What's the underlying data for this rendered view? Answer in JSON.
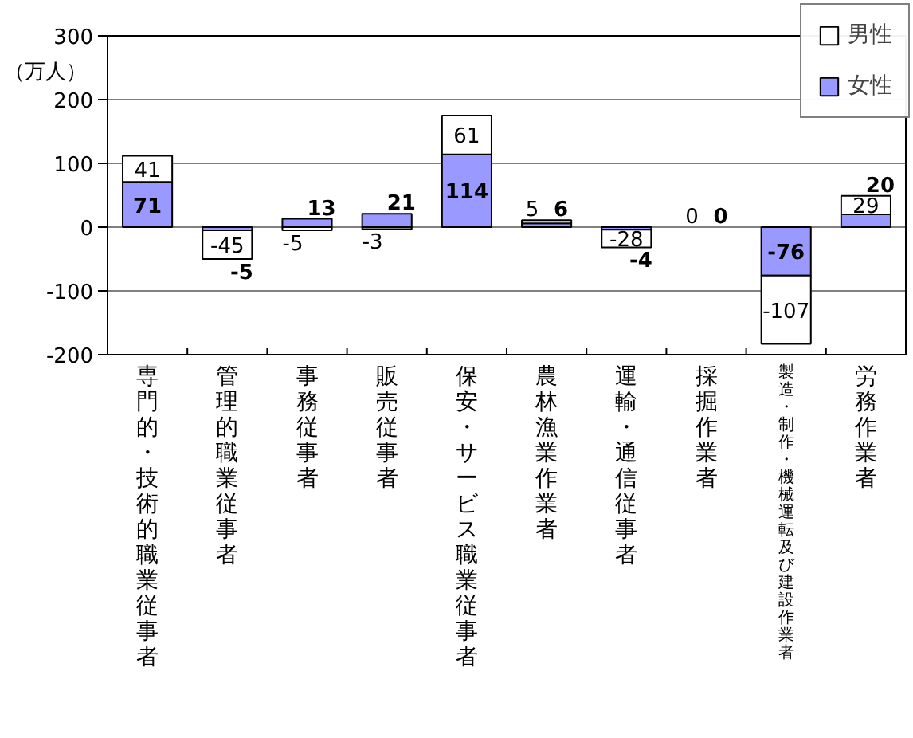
{
  "chart_data": {
    "type": "bar",
    "stacked": true,
    "ylabel": "（万人）",
    "categories": [
      "専門的・技術的職業従事者",
      "管理的職業従事者",
      "事務従事者",
      "販売従事者",
      "保安・サービス職業従事者",
      "農林漁業作業者",
      "運輸・通信従事者",
      "採掘作業者",
      "製造・制作・機械運転及び建設作業者",
      "労務作業者"
    ],
    "series": [
      {
        "name": "女性",
        "color": "#9999ff",
        "values": [
          71,
          -5,
          13,
          21,
          114,
          6,
          -4,
          0,
          -76,
          20
        ]
      },
      {
        "name": "男性",
        "color": "#ffffff",
        "values": [
          41,
          -45,
          -5,
          -3,
          61,
          5,
          -28,
          0,
          -107,
          29
        ]
      }
    ],
    "data_labels": true,
    "ylim": [
      -200,
      300
    ],
    "yticks": [
      -200,
      -100,
      0,
      100,
      200,
      300
    ],
    "grid": "y",
    "legend": "top right"
  }
}
